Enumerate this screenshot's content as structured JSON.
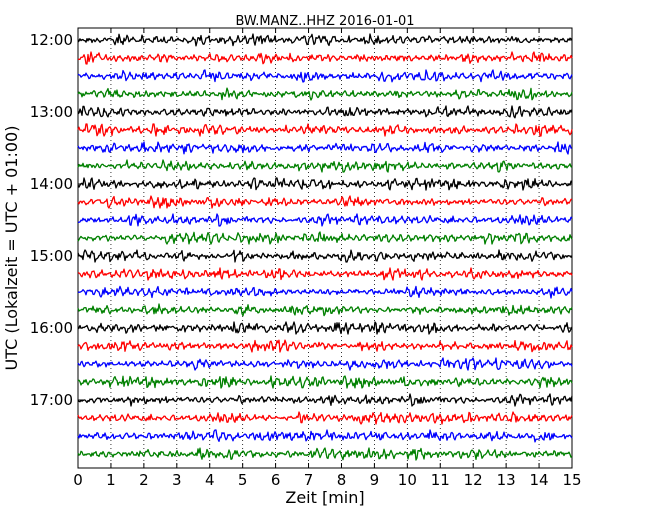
{
  "chart_data": {
    "type": "line",
    "title": "BW.MANZ..HHZ 2016-01-01",
    "xlabel": "Zeit  [min]",
    "ylabel": "UTC (Lokalzeit = UTC + 01:00)",
    "xlim": [
      0,
      15
    ],
    "x_ticks": [
      "0",
      "1",
      "2",
      "3",
      "4",
      "5",
      "6",
      "7",
      "8",
      "9",
      "10",
      "11",
      "12",
      "13",
      "14",
      "15"
    ],
    "y_ticks": [
      "12:00",
      "13:00",
      "14:00",
      "15:00",
      "16:00",
      "17:00"
    ],
    "minutes_per_row": 15,
    "row_start_times": [
      "12:00",
      "12:15",
      "12:30",
      "12:45",
      "13:00",
      "13:15",
      "13:30",
      "13:45",
      "14:00",
      "14:15",
      "14:30",
      "14:45",
      "15:00",
      "15:15",
      "15:30",
      "15:45",
      "16:00",
      "16:15",
      "16:30",
      "16:45",
      "17:00",
      "17:15",
      "17:30",
      "17:45"
    ],
    "row_colors": [
      "#000000",
      "#ff0000",
      "#0000ff",
      "#008000"
    ],
    "x_grid": "dotted vertical lines at each minute"
  }
}
